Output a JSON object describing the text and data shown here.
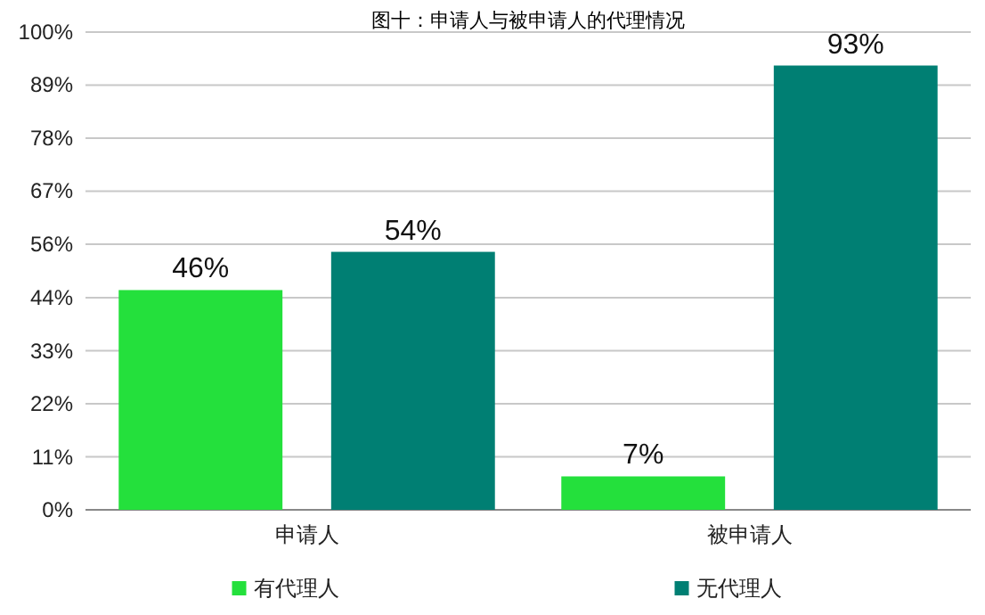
{
  "chart_data": {
    "type": "bar",
    "title": "图十：申请人与被申请人的代理情况",
    "categories": [
      "申请人",
      "被申请人"
    ],
    "series": [
      {
        "name": "有代理人",
        "color": "#24e03c",
        "values": [
          46,
          7
        ],
        "value_labels": [
          "46%",
          "7%"
        ]
      },
      {
        "name": "无代理人",
        "color": "#007f73",
        "values": [
          54,
          93
        ],
        "value_labels": [
          "54%",
          "93%"
        ]
      }
    ],
    "ylim": [
      0,
      100
    ],
    "yticks": [
      {
        "value": 0,
        "label": "0%"
      },
      {
        "value": 11.1,
        "label": "11%"
      },
      {
        "value": 22.2,
        "label": "22%"
      },
      {
        "value": 33.3,
        "label": "33%"
      },
      {
        "value": 44.4,
        "label": "44%"
      },
      {
        "value": 55.6,
        "label": "56%"
      },
      {
        "value": 66.7,
        "label": "67%"
      },
      {
        "value": 77.8,
        "label": "78%"
      },
      {
        "value": 88.9,
        "label": "89%"
      },
      {
        "value": 100,
        "label": "100%"
      }
    ],
    "grid": "y",
    "legend": "bottom"
  }
}
